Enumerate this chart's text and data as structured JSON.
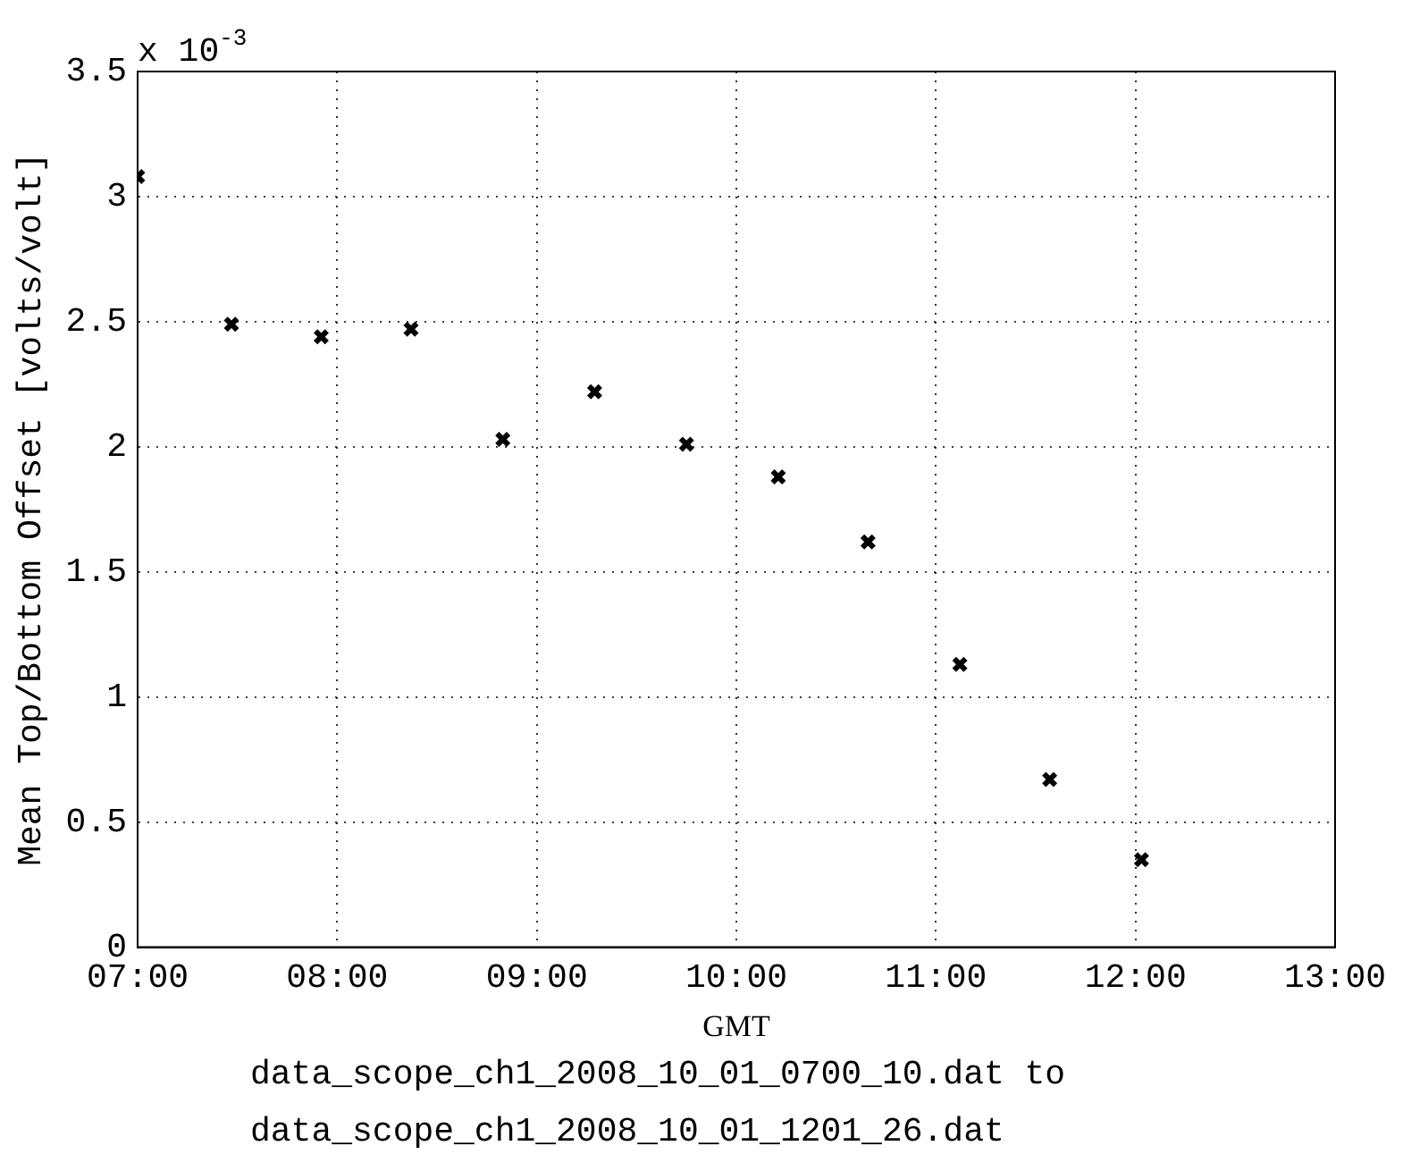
{
  "chart_data": {
    "type": "scatter",
    "xlabel": "GMT",
    "ylabel": "Mean Top/Bottom Offset [volts/volt]",
    "annotations": [
      "x 10$^{-3}$",
      "data_scope_ch1_2008_10_01_0700_10.dat to",
      "data_scope_ch1_2008_10_01_1201_26.dat"
    ],
    "x": [
      7.0,
      7.47,
      7.92,
      8.37,
      8.83,
      9.29,
      9.75,
      10.21,
      10.66,
      11.12,
      11.57,
      12.03
    ],
    "series": [
      {
        "color": "#000000",
        "values": [
          3.08,
          2.49,
          2.44,
          2.47,
          2.03,
          2.22,
          2.01,
          1.88,
          1.62,
          1.13,
          0.67,
          0.35
        ]
      }
    ],
    "xlim": [
      7,
      13
    ],
    "xticks": [
      {
        "value": 7,
        "label": "07:00"
      },
      {
        "value": 8,
        "label": "08:00"
      },
      {
        "value": 9,
        "label": "09:00"
      },
      {
        "value": 10,
        "label": "10:00"
      },
      {
        "value": 11,
        "label": "11:00"
      },
      {
        "value": 12,
        "label": "12:00"
      },
      {
        "value": 13,
        "label": "13:00"
      }
    ],
    "ylim": [
      0,
      3.5
    ],
    "yticks": [
      0,
      0.5,
      1,
      1.5,
      2,
      2.5,
      3,
      3.5
    ],
    "grid": true,
    "marker": "cross",
    "legend": false
  }
}
